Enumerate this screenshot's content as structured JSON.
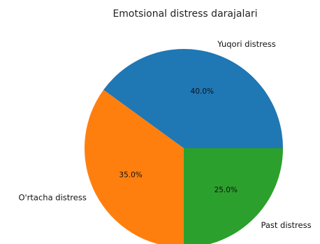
{
  "chart_data": {
    "type": "pie",
    "title": "Emotsional distress darajalari",
    "categories": [
      "Yuqori distress",
      "O'rtacha distress",
      "Past distress"
    ],
    "values": [
      40.0,
      35.0,
      25.0
    ],
    "percent_labels": [
      "40.0%",
      "35.0%",
      "25.0%"
    ],
    "colors": [
      "#1f77b4",
      "#ff7f0e",
      "#2ca02c"
    ],
    "start_angle_deg": 0,
    "direction": "counterclockwise"
  }
}
